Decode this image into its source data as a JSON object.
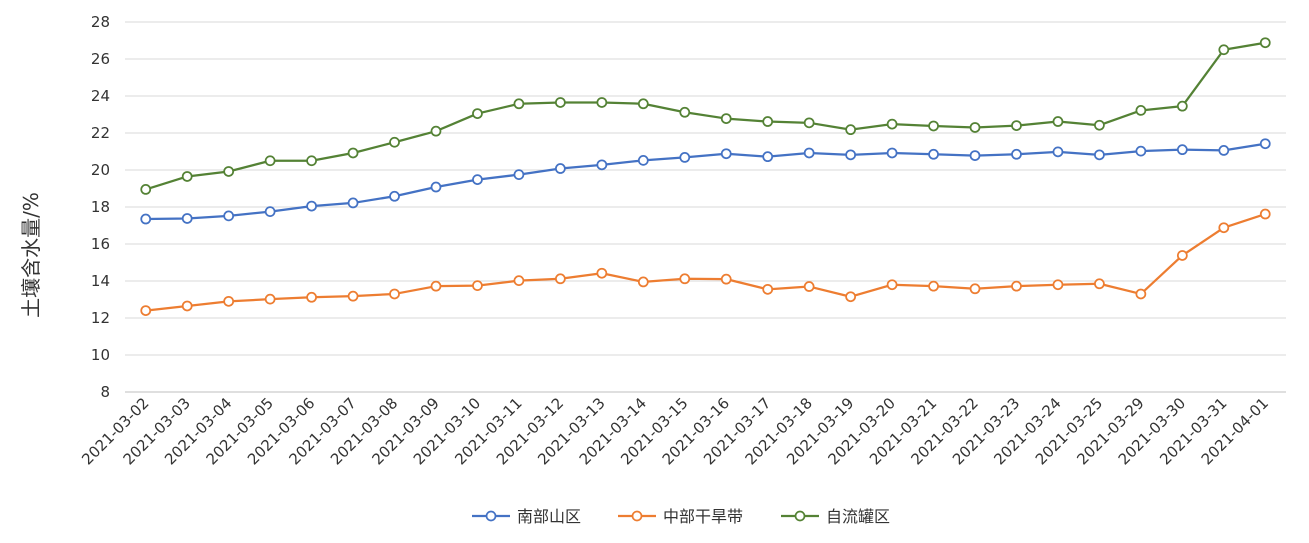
{
  "chart_data": {
    "type": "line",
    "ylabel": "土壤含水量/%",
    "xlabel": "",
    "ylim": [
      8,
      28
    ],
    "yticks": [
      8,
      10,
      12,
      14,
      16,
      18,
      20,
      22,
      24,
      26,
      28
    ],
    "grid": true,
    "legend_position": "bottom",
    "categories": [
      "2021-03-02",
      "2021-03-03",
      "2021-03-04",
      "2021-03-05",
      "2021-03-06",
      "2021-03-07",
      "2021-03-08",
      "2021-03-09",
      "2021-03-10",
      "2021-03-11",
      "2021-03-12",
      "2021-03-13",
      "2021-03-14",
      "2021-03-15",
      "2021-03-16",
      "2021-03-17",
      "2021-03-18",
      "2021-03-19",
      "2021-03-20",
      "2021-03-21",
      "2021-03-22",
      "2021-03-23",
      "2021-03-24",
      "2021-03-25",
      "2021-03-29",
      "2021-03-30",
      "2021-03-31",
      "2021-04-01"
    ],
    "series": [
      {
        "name": "南部山区",
        "color": "#4472c4",
        "values": [
          17.35,
          17.38,
          17.52,
          17.75,
          18.05,
          18.22,
          18.58,
          19.08,
          19.48,
          19.75,
          20.08,
          20.28,
          20.52,
          20.68,
          20.88,
          20.72,
          20.92,
          20.82,
          20.92,
          20.85,
          20.78,
          20.85,
          20.98,
          20.82,
          21.02,
          21.1,
          21.06,
          21.42
        ]
      },
      {
        "name": "中部干旱带",
        "color": "#ed7d31",
        "values": [
          12.4,
          12.65,
          12.9,
          13.02,
          13.12,
          13.18,
          13.3,
          13.72,
          13.75,
          14.02,
          14.12,
          14.42,
          13.95,
          14.12,
          14.1,
          13.55,
          13.7,
          13.15,
          13.8,
          13.72,
          13.58,
          13.72,
          13.8,
          13.85,
          13.3,
          15.38,
          16.88,
          17.62
        ]
      },
      {
        "name": "自流罐区",
        "color": "#548235",
        "values": [
          18.95,
          19.65,
          19.92,
          20.5,
          20.5,
          20.92,
          21.5,
          22.1,
          23.05,
          23.58,
          23.65,
          23.65,
          23.58,
          23.12,
          22.78,
          22.62,
          22.55,
          22.18,
          22.48,
          22.38,
          22.3,
          22.4,
          22.62,
          22.42,
          23.22,
          23.45,
          26.5,
          26.88
        ]
      }
    ]
  }
}
